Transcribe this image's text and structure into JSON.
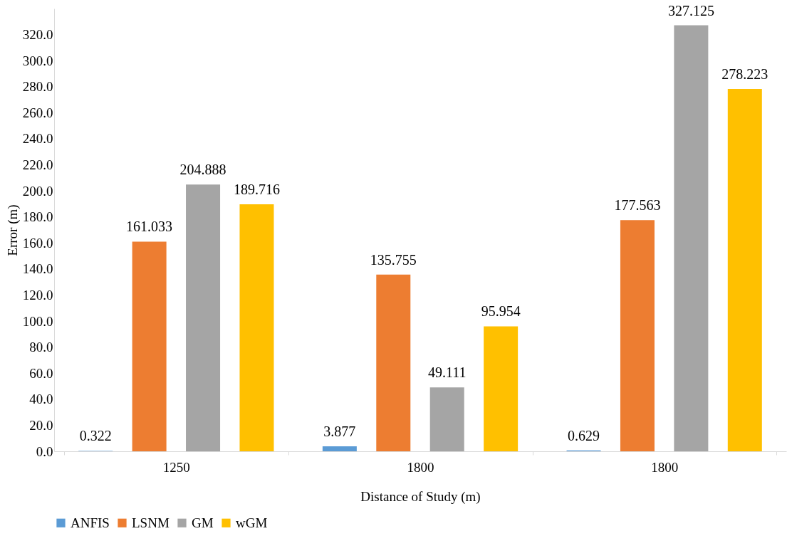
{
  "chart_data": {
    "type": "bar",
    "xlabel": "Distance of Study (m)",
    "ylabel": "Error (m)",
    "categories": [
      "1250",
      "1800",
      "1800"
    ],
    "series": [
      {
        "name": "ANFIS",
        "color": "#5b9bd5",
        "values": [
          0.322,
          3.877,
          0.629
        ]
      },
      {
        "name": "LSNM",
        "color": "#ed7d31",
        "values": [
          161.033,
          135.755,
          177.563
        ]
      },
      {
        "name": "GM",
        "color": "#a5a5a5",
        "values": [
          204.888,
          49.111,
          327.125
        ]
      },
      {
        "name": "wGM",
        "color": "#ffc000",
        "values": [
          189.716,
          95.954,
          278.223
        ]
      }
    ],
    "ylim": [
      0,
      340
    ],
    "yticks": [
      {
        "value": 0,
        "label": "0.0"
      },
      {
        "value": 20,
        "label": "20.0"
      },
      {
        "value": 40,
        "label": "40.0"
      },
      {
        "value": 60,
        "label": "60.0"
      },
      {
        "value": 80,
        "label": "80.0"
      },
      {
        "value": 100,
        "label": "100.0"
      },
      {
        "value": 120,
        "label": "120.0"
      },
      {
        "value": 140,
        "label": "140.0"
      },
      {
        "value": 160,
        "label": "160.0"
      },
      {
        "value": 180,
        "label": "180.0"
      },
      {
        "value": 200,
        "label": "200.0"
      },
      {
        "value": 220,
        "label": "220.0"
      },
      {
        "value": 240,
        "label": "240.0"
      },
      {
        "value": 260,
        "label": "260.0"
      },
      {
        "value": 280,
        "label": "280.0"
      },
      {
        "value": 300,
        "label": "300.0"
      },
      {
        "value": 320,
        "label": "320.0"
      }
    ],
    "data_labels": true,
    "grid": false,
    "legend": "bottom"
  }
}
